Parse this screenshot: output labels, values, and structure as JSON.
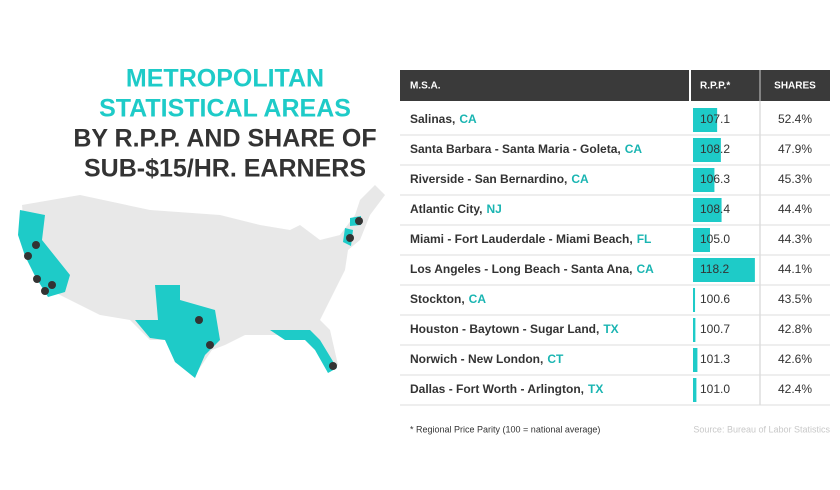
{
  "title": {
    "lines": [
      "METROPOLITAN",
      "STATISTICAL AREAS",
      "BY R.P.P. AND SHARE OF",
      "SUB-$15/HR. EARNERS"
    ]
  },
  "table": {
    "headers": [
      "M.S.A.",
      "R.P.P.*",
      "SHARES"
    ],
    "bar_range": [
      100,
      120
    ],
    "rows": [
      {
        "msa": "Salinas,",
        "state": "CA",
        "rpp": {
          "value": 107.1,
          "label": "107.1"
        },
        "share": "52.4%"
      },
      {
        "msa": "Santa Barbara - Santa Maria - Goleta,",
        "state": "CA",
        "rpp": {
          "value": 108.2,
          "label": "108.2"
        },
        "share": "47.9%"
      },
      {
        "msa": "Riverside - San Bernardino,",
        "state": "CA",
        "rpp": {
          "value": 106.3,
          "label": "106.3"
        },
        "share": "45.3%"
      },
      {
        "msa": "Atlantic City,",
        "state": "NJ",
        "rpp": {
          "value": 108.4,
          "label": "108.4"
        },
        "share": "44.4%"
      },
      {
        "msa": "Miami - Fort Lauderdale - Miami Beach,",
        "state": "FL",
        "rpp": {
          "value": 105.0,
          "label": "105.0"
        },
        "share": "44.3%"
      },
      {
        "msa": "Los Angeles - Long Beach - Santa Ana,",
        "state": "CA",
        "rpp": {
          "value": 118.2,
          "label": "118.2"
        },
        "share": "44.1%"
      },
      {
        "msa": "Stockton,",
        "state": "CA",
        "rpp": {
          "value": 100.6,
          "label": "100.6"
        },
        "share": "43.5%"
      },
      {
        "msa": "Houston - Baytown - Sugar Land,",
        "state": "TX",
        "rpp": {
          "value": 100.7,
          "label": "100.7"
        },
        "share": "42.8%"
      },
      {
        "msa": "Norwich - New London,",
        "state": "CT",
        "rpp": {
          "value": 101.3,
          "label": "101.3"
        },
        "share": "42.6%"
      },
      {
        "msa": "Dallas - Fort Worth - Arlington,",
        "state": "TX",
        "rpp": {
          "value": 101.0,
          "label": "101.0"
        },
        "share": "42.4%"
      }
    ]
  },
  "footnote": "* Regional Price Parity (100 = national average)",
  "source": "Source: Bureau of Labor Statistics"
}
